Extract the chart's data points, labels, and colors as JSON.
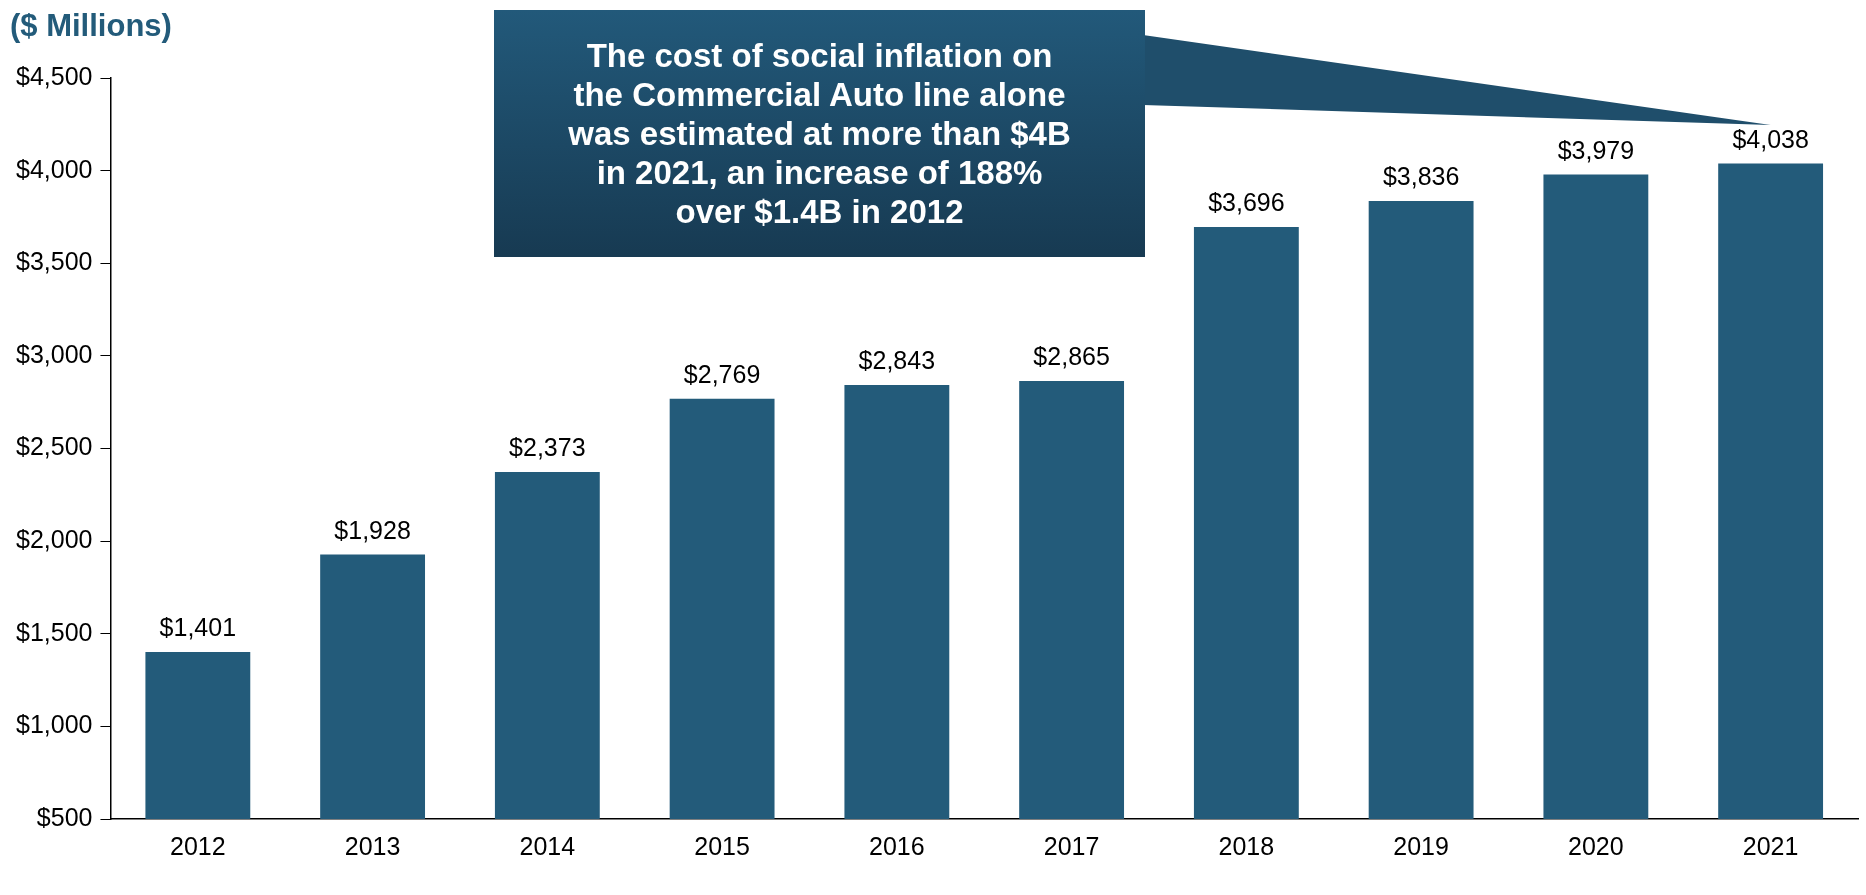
{
  "chart_data": {
    "type": "bar",
    "ylabel": "($ Millions)",
    "categories": [
      "2012",
      "2013",
      "2014",
      "2015",
      "2016",
      "2017",
      "2018",
      "2019",
      "2020",
      "2021"
    ],
    "values": [
      1401,
      1928,
      2373,
      2769,
      2843,
      2865,
      3696,
      3836,
      3979,
      4038
    ],
    "value_labels": [
      "$1,401",
      "$1,928",
      "$2,373",
      "$2,769",
      "$2,843",
      "$2,865",
      "$3,696",
      "$3,836",
      "$3,979",
      "$4,038"
    ],
    "color": "#235b7a",
    "ylim": [
      500,
      4500
    ],
    "yticks": [
      {
        "value": 500,
        "label": "$500"
      },
      {
        "value": 1000,
        "label": "$1,000"
      },
      {
        "value": 1500,
        "label": "$1,500"
      },
      {
        "value": 2000,
        "label": "$2,000"
      },
      {
        "value": 2500,
        "label": "$2,500"
      },
      {
        "value": 3000,
        "label": "$3,000"
      },
      {
        "value": 3500,
        "label": "$3,500"
      },
      {
        "value": 4000,
        "label": "$4,000"
      },
      {
        "value": 4500,
        "label": "$4,500"
      }
    ],
    "grid": false,
    "legend": false,
    "annotations": [
      "The cost of social inflation on the Commercial Auto line alone was estimated at more than $4B in 2021, an increase of 188% over $1.4B in 2012"
    ]
  }
}
